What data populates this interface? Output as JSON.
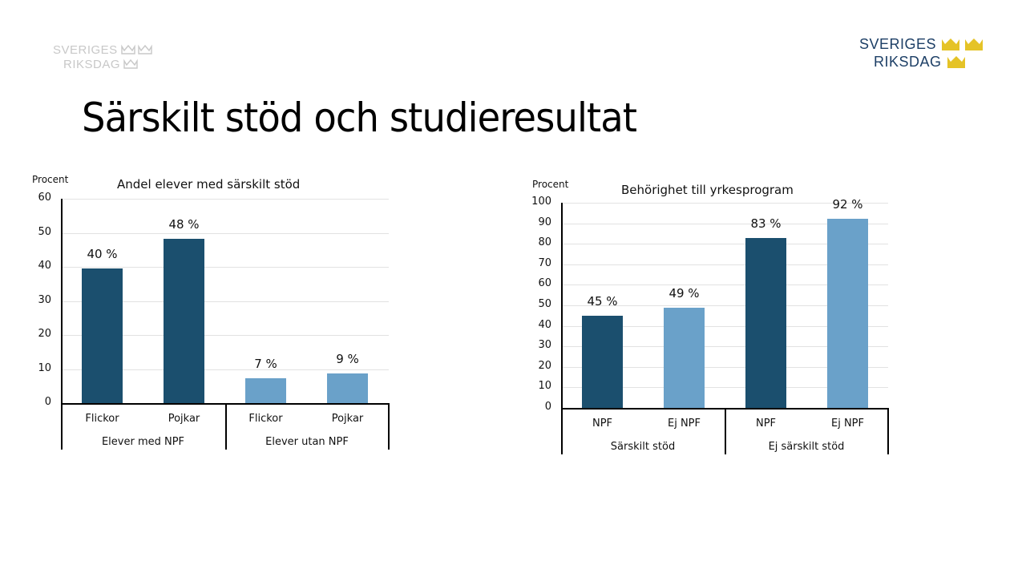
{
  "slide": {
    "title": "Särskilt stöd och studieresultat",
    "logo_faded": {
      "line1": "SVERIGES",
      "line2": "RIKSDAG",
      "color": "#c8c8c8"
    },
    "logo_main": {
      "line1": "SVERIGES",
      "line2": "RIKSDAG",
      "text_color": "#1d3f66",
      "crown_color": "#e5c327"
    }
  },
  "colors": {
    "dark_bar": "#1b4f6e",
    "light_bar": "#6aa1c9",
    "gridline": "#e2e2e2"
  },
  "chart_data": [
    {
      "type": "bar",
      "title": "Andel elever med särskilt stöd",
      "ylabel": "Procent",
      "xlabel": "",
      "ylim": [
        0,
        60
      ],
      "yticks": [
        0,
        10,
        20,
        30,
        40,
        50,
        60
      ],
      "grid": true,
      "legend": "none",
      "categories": [
        "Flickor",
        "Pojkar",
        "Flickor",
        "Pojkar"
      ],
      "groups": [
        {
          "label": "Elever med NPF",
          "span": [
            0,
            1
          ]
        },
        {
          "label": "Elever utan NPF",
          "span": [
            2,
            3
          ]
        }
      ],
      "values": [
        39.5,
        48.3,
        7.4,
        8.7
      ],
      "value_labels": [
        "40 %",
        "48 %",
        "7 %",
        "9 %"
      ],
      "bar_colors": [
        "#1b4f6e",
        "#1b4f6e",
        "#6aa1c9",
        "#6aa1c9"
      ]
    },
    {
      "type": "bar",
      "title": "Behörighet till yrkesprogram",
      "ylabel": "Procent",
      "xlabel": "",
      "ylim": [
        0,
        100
      ],
      "yticks": [
        0,
        10,
        20,
        30,
        40,
        50,
        60,
        70,
        80,
        90,
        100
      ],
      "grid": true,
      "legend": "none",
      "categories": [
        "NPF",
        "Ej NPF",
        "NPF",
        "Ej NPF"
      ],
      "groups": [
        {
          "label": "Särskilt stöd",
          "span": [
            0,
            1
          ]
        },
        {
          "label": "Ej särskilt stöd",
          "span": [
            2,
            3
          ]
        }
      ],
      "values": [
        45,
        49,
        83,
        92
      ],
      "value_labels": [
        "45 %",
        "49 %",
        "83 %",
        "92 %"
      ],
      "bar_colors": [
        "#1b4f6e",
        "#6aa1c9",
        "#1b4f6e",
        "#6aa1c9"
      ]
    }
  ]
}
